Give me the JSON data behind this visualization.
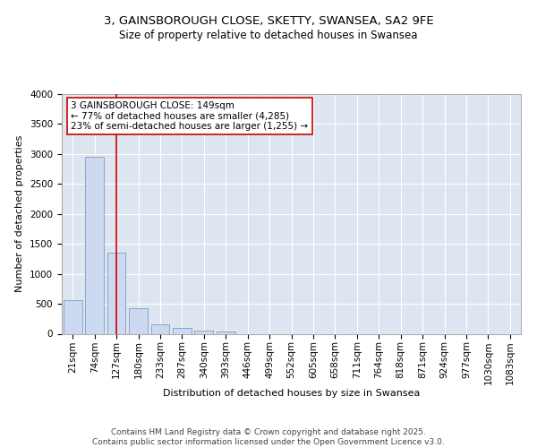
{
  "title1": "3, GAINSBOROUGH CLOSE, SKETTY, SWANSEA, SA2 9FE",
  "title2": "Size of property relative to detached houses in Swansea",
  "xlabel": "Distribution of detached houses by size in Swansea",
  "ylabel": "Number of detached properties",
  "categories": [
    "21sqm",
    "74sqm",
    "127sqm",
    "180sqm",
    "233sqm",
    "287sqm",
    "340sqm",
    "393sqm",
    "446sqm",
    "499sqm",
    "552sqm",
    "605sqm",
    "658sqm",
    "711sqm",
    "764sqm",
    "818sqm",
    "871sqm",
    "924sqm",
    "977sqm",
    "1030sqm",
    "1083sqm"
  ],
  "values": [
    560,
    2960,
    1360,
    420,
    160,
    90,
    55,
    40,
    0,
    0,
    0,
    0,
    0,
    0,
    0,
    0,
    0,
    0,
    0,
    0,
    0
  ],
  "bar_color": "#ccd9f0",
  "bar_edge_color": "#7a9fc2",
  "vline_x": 2,
  "vline_color": "#cc0000",
  "annotation_text": "3 GAINSBOROUGH CLOSE: 149sqm\n← 77% of detached houses are smaller (4,285)\n23% of semi-detached houses are larger (1,255) →",
  "annotation_box_color": "#ffffff",
  "annotation_box_edge": "#cc0000",
  "ylim": [
    0,
    4000
  ],
  "yticks": [
    0,
    500,
    1000,
    1500,
    2000,
    2500,
    3000,
    3500,
    4000
  ],
  "background_color": "#dde5f0",
  "grid_color": "#ffffff",
  "footer_text": "Contains HM Land Registry data © Crown copyright and database right 2025.\nContains public sector information licensed under the Open Government Licence v3.0.",
  "title_fontsize": 9.5,
  "subtitle_fontsize": 8.5,
  "label_fontsize": 8,
  "tick_fontsize": 7.5,
  "annotation_fontsize": 7.5,
  "footer_fontsize": 6.5
}
